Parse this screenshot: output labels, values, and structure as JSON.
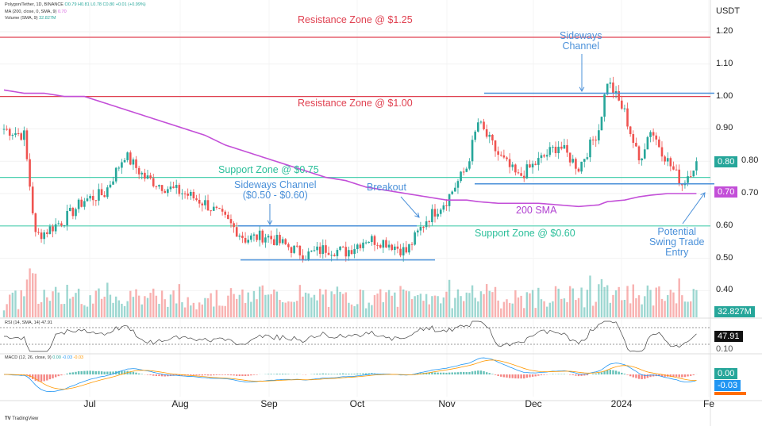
{
  "header": {
    "symbol": "Polygon/Tether, 1D, BINANCE",
    "ohlc": "O0.79 H0.81 L0.78 C0.80 +0.01 (+0.99%)",
    "ma_label": "MA (200, close, 0, SMA, 9)",
    "ma_value": "0.70",
    "volume_label": "Volume (SMA, 9)",
    "volume_value": "32.827M",
    "rsi_label": "RSI (14, SMA, 14)",
    "rsi_value": "47.91",
    "macd_label": "MACD (12, 26, close, 9)",
    "macd_values": [
      "0.00",
      "-0.03",
      "-0.03"
    ]
  },
  "axis": {
    "currency": "USDT",
    "price_ticks": [
      "1.20",
      "1.10",
      "1.00",
      "0.90",
      "0.80",
      "0.70",
      "0.60",
      "0.50",
      "0.40"
    ],
    "rsi_tick": "0.10",
    "months": [
      "Jul",
      "Aug",
      "Sep",
      "Oct",
      "Nov",
      "Dec",
      "2024",
      "Fe"
    ]
  },
  "badges": {
    "price": "0.80",
    "sma": "0.70",
    "volume": "32.827M",
    "rsi": "47.91",
    "macd": "0.00",
    "signal": "-0.03"
  },
  "annotations": {
    "res125": "Resistance Zone @ $1.25",
    "res100": "Resistance Zone @ $1.00",
    "sup075": "Support Zone @ $0.75",
    "sup060": "Support Zone @ $0.60",
    "sideways1": "Sideways Channel\n($0.50 - $0.60)",
    "breakout": "Breakout",
    "sideways2": "Sideways\nChannel",
    "sma200": "200 SMA",
    "entry": "Potential\nSwing Trade\nEntry"
  },
  "colors": {
    "up": "#26a69a",
    "down": "#ef5350",
    "sma": "#c34fd8",
    "resistance": "#e04050",
    "support": "#4dd0b0",
    "channel": "#4a90d9"
  },
  "footer": "TradingView",
  "chart_data": {
    "type": "candlestick",
    "title": "Polygon/Tether, 1D, BINANCE",
    "ylim": [
      0.35,
      1.25
    ],
    "dates": [
      "2023-06-01",
      "2023-06-08",
      "2023-06-12",
      "2023-06-15",
      "2023-06-22",
      "2023-06-29",
      "2023-07-06",
      "2023-07-13",
      "2023-07-20",
      "2023-07-27",
      "2023-08-03",
      "2023-08-10",
      "2023-08-17",
      "2023-08-24",
      "2023-08-31",
      "2023-09-07",
      "2023-09-14",
      "2023-09-21",
      "2023-09-28",
      "2023-10-05",
      "2023-10-12",
      "2023-10-19",
      "2023-10-26",
      "2023-11-02",
      "2023-11-09",
      "2023-11-13",
      "2023-11-20",
      "2023-11-27",
      "2023-12-04",
      "2023-12-11",
      "2023-12-18",
      "2023-12-25",
      "2023-12-28",
      "2024-01-03",
      "2024-01-08",
      "2024-01-12",
      "2024-01-18",
      "2024-01-23",
      "2024-01-28"
    ],
    "close": [
      0.9,
      0.88,
      0.57,
      0.58,
      0.62,
      0.68,
      0.7,
      0.82,
      0.75,
      0.72,
      0.7,
      0.67,
      0.62,
      0.56,
      0.57,
      0.54,
      0.51,
      0.53,
      0.52,
      0.56,
      0.55,
      0.52,
      0.62,
      0.68,
      0.78,
      0.92,
      0.82,
      0.75,
      0.8,
      0.85,
      0.78,
      0.9,
      1.05,
      0.95,
      0.8,
      0.9,
      0.8,
      0.73,
      0.8
    ],
    "sma200": [
      1.02,
      1.01,
      1.01,
      1.01,
      1.0,
      1.0,
      0.98,
      0.96,
      0.94,
      0.92,
      0.9,
      0.88,
      0.85,
      0.83,
      0.81,
      0.79,
      0.77,
      0.75,
      0.74,
      0.72,
      0.71,
      0.7,
      0.69,
      0.68,
      0.68,
      0.675,
      0.67,
      0.67,
      0.67,
      0.665,
      0.66,
      0.665,
      0.675,
      0.68,
      0.69,
      0.695,
      0.7,
      0.7,
      0.7
    ],
    "levels": {
      "resistance": [
        1.25,
        1.0
      ],
      "support": [
        0.75,
        0.6
      ]
    }
  }
}
